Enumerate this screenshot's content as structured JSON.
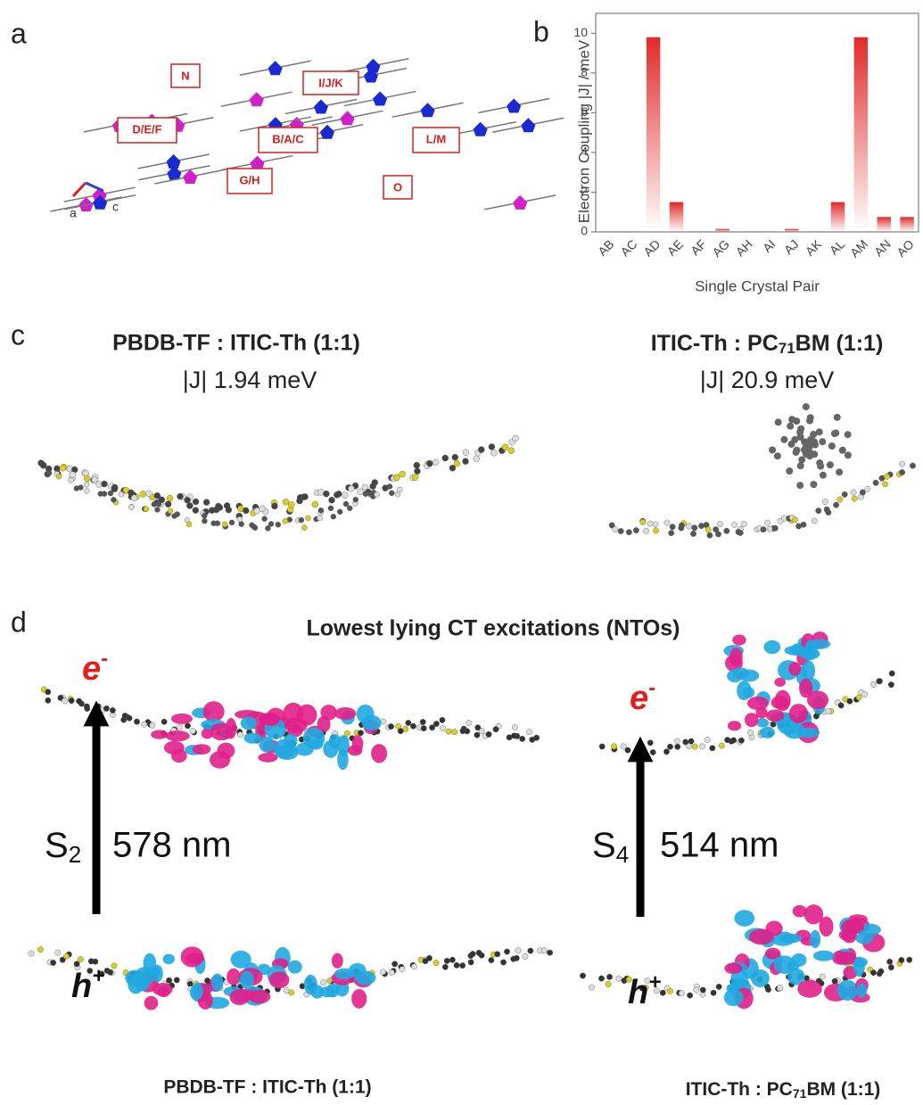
{
  "panels": {
    "a": "a",
    "b": "b",
    "c": "c",
    "d": "d"
  },
  "crystal": {
    "labels": [
      "N",
      "I/J/K",
      "D/E/F",
      "B/A/C",
      "L/M",
      "G/H",
      "O"
    ],
    "axes": [
      "a",
      "c"
    ]
  },
  "panel_c": {
    "left_title": "PBDB-TF : ITIC-Th (1:1)",
    "left_coupling": "|J| 1.94 meV",
    "right_title": {
      "before": "ITIC-Th : PC",
      "sub": "71",
      "after": "BM (1:1)"
    },
    "right_coupling": "|J| 20.9 meV"
  },
  "panel_d": {
    "title": "Lowest lying CT excitations (NTOs)",
    "electron": {
      "base": "e",
      "sup": "-"
    },
    "hole": {
      "base": "h",
      "sup": "+"
    },
    "left_state": {
      "base": "S",
      "sub": "2"
    },
    "left_wavelength": "578 nm",
    "right_state": {
      "base": "S",
      "sub": "4"
    },
    "right_wavelength": "514 nm",
    "left_caption": "PBDB-TF : ITIC-Th (1:1)",
    "right_caption": {
      "before": "ITIC-Th : PC",
      "sub": "71",
      "after": "BM (1:1)"
    }
  },
  "chart_data": {
    "type": "bar",
    "xlabel": "Single Crystal Pair",
    "ylabel": "Electron Coupling |J| / meV",
    "categories": [
      "AB",
      "AC",
      "AD",
      "AE",
      "AF",
      "AG",
      "AH",
      "AI",
      "AJ",
      "AK",
      "AL",
      "AM",
      "AN",
      "AO"
    ],
    "values": [
      0,
      0,
      9.8,
      1.5,
      0,
      0.15,
      0,
      0,
      0.15,
      0,
      1.5,
      9.8,
      0.75,
      0.75
    ],
    "color": "#e02a2a",
    "ylim": [
      0,
      11
    ],
    "yticks": [
      0,
      2,
      4,
      6,
      8,
      10
    ],
    "grid": false
  }
}
